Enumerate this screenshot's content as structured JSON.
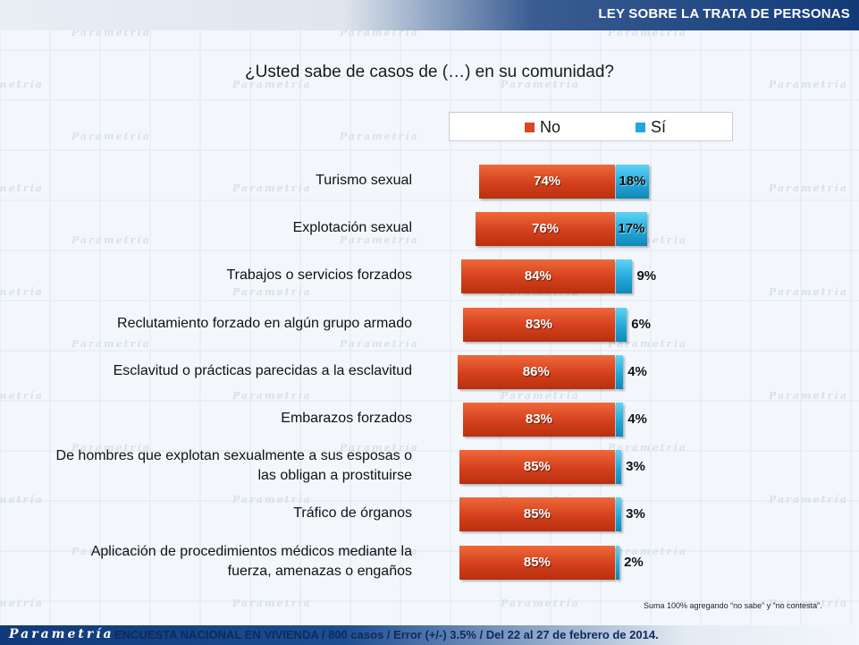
{
  "header": {
    "title": "LEY SOBRE LA TRATA DE PERSONAS"
  },
  "question": "¿Usted sabe de casos de (…) en su comunidad?",
  "background": {
    "watermark": "Parametría"
  },
  "legend": [
    {
      "label": "No",
      "color": "#d9461f"
    },
    {
      "label": "Sí",
      "color": "#1fa8e0"
    }
  ],
  "chart_data": {
    "type": "bar",
    "orientation": "horizontal-diverging",
    "categories": [
      "Turismo sexual",
      "Explotación sexual",
      "Trabajos o servicios forzados",
      "Reclutamiento forzado en algún grupo armado",
      "Esclavitud o prácticas parecidas a la esclavitud",
      "Embarazos forzados",
      "De hombres que explotan sexualmente a sus esposas o las obligan a prostituirse",
      "Tráfico de órganos",
      "Aplicación de procedimientos médicos mediante la fuerza, amenazas o engaños"
    ],
    "category_lines": [
      [
        "Turismo sexual"
      ],
      [
        "Explotación sexual"
      ],
      [
        "Trabajos o servicios forzados"
      ],
      [
        "Reclutamiento forzado en algún grupo armado"
      ],
      [
        "Esclavitud o prácticas parecidas a la esclavitud"
      ],
      [
        "Embarazos forzados"
      ],
      [
        "De hombres que explotan sexualmente a sus esposas o",
        "las obligan a prostituirse"
      ],
      [
        "Tráfico de órganos"
      ],
      [
        "Aplicación de procedimientos médicos mediante la",
        "fuerza, amenazas o engaños"
      ]
    ],
    "series": [
      {
        "name": "No",
        "values": [
          74,
          76,
          84,
          83,
          86,
          83,
          85,
          85,
          85
        ],
        "labels": [
          "74%",
          "76%",
          "84%",
          "83%",
          "86%",
          "83%",
          "85%",
          "85%",
          "85%"
        ],
        "color": "#d9461f"
      },
      {
        "name": "Sí",
        "values": [
          18,
          17,
          9,
          6,
          4,
          4,
          3,
          3,
          2
        ],
        "labels": [
          "18%",
          "17%",
          "9%",
          "6%",
          "4%",
          "4%",
          "3%",
          "3%",
          "2%"
        ],
        "color": "#1fa8e0"
      }
    ],
    "xlim": [
      -100,
      100
    ]
  },
  "note": "Suma 100%  agregando “no sabe” y “no contesta”.",
  "footer": {
    "logo": "Parametría",
    "text": "ENCUESTA NACIONAL EN VIVIENDA / 800 casos / Error (+/-)  3.5% / Del 22 al 27 de febrero de 2014."
  }
}
